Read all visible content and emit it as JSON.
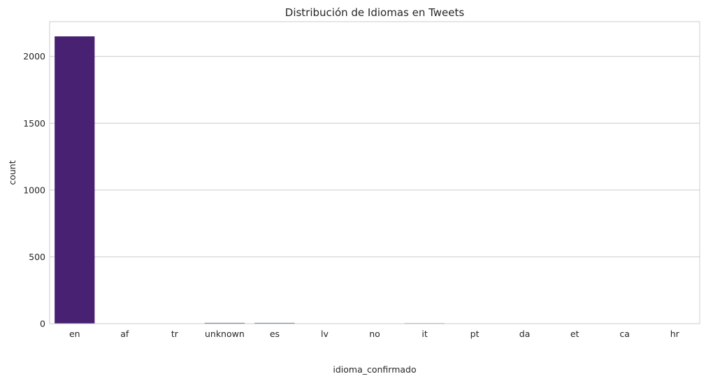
{
  "chart_data": {
    "type": "bar",
    "title": "Distribución de Idiomas en Tweets",
    "xlabel": "idioma_confirmado",
    "ylabel": "count",
    "categories": [
      "en",
      "af",
      "tr",
      "unknown",
      "es",
      "lv",
      "no",
      "it",
      "pt",
      "da",
      "et",
      "ca",
      "hr"
    ],
    "values": [
      2150,
      1,
      1,
      6,
      6,
      1,
      1,
      4,
      1,
      1,
      1,
      1,
      1
    ],
    "ylim": [
      0,
      2260
    ],
    "yticks": [
      0,
      500,
      1000,
      1500,
      2000
    ],
    "grid": true,
    "colors": [
      "#482173",
      "#472a7a",
      "#433d84",
      "#3e4989",
      "#355f8d",
      "#2f6c8e",
      "#297b8e",
      "#238a8d",
      "#1f988b",
      "#22a785",
      "#35b779",
      "#54c568",
      "#7ad151"
    ]
  }
}
